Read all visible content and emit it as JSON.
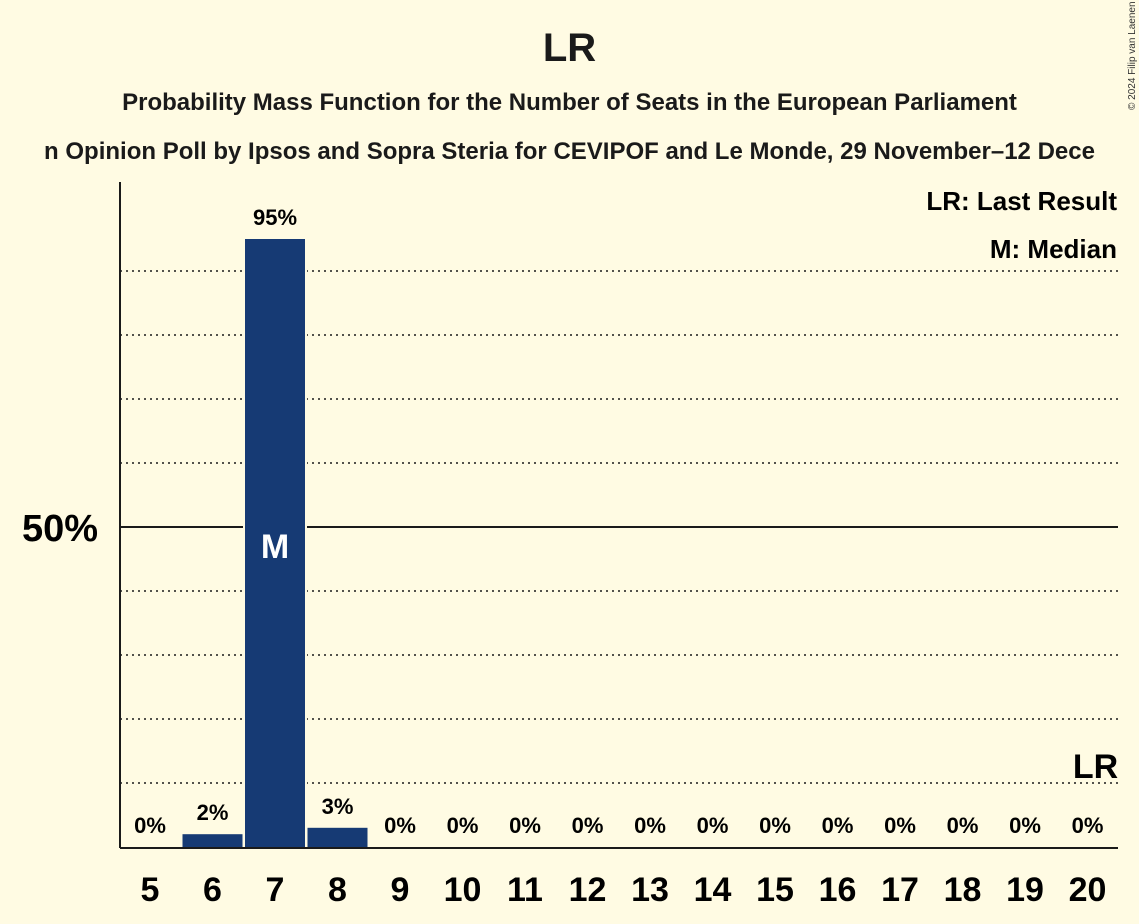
{
  "title": "LR",
  "subtitle": "Probability Mass Function for the Number of Seats in the European Parliament",
  "subtitle2": "n Opinion Poll by Ipsos and Sopra Steria for CEVIPOF and Le Monde, 29 November–12 Dece",
  "copyright": "© 2024 Filip van Laenen",
  "legend": {
    "last_result": "LR: Last Result",
    "median": "M: Median"
  },
  "colors": {
    "bar": "#163a74",
    "background": "#fffbe3",
    "text": "#1a1a1a"
  },
  "chart_data": {
    "type": "bar",
    "categories": [
      "5",
      "6",
      "7",
      "8",
      "9",
      "10",
      "11",
      "12",
      "13",
      "14",
      "15",
      "16",
      "17",
      "18",
      "19",
      "20"
    ],
    "values": [
      0,
      2,
      95,
      3,
      0,
      0,
      0,
      0,
      0,
      0,
      0,
      0,
      0,
      0,
      0,
      0
    ],
    "value_labels": [
      "0%",
      "2%",
      "95%",
      "3%",
      "0%",
      "0%",
      "0%",
      "0%",
      "0%",
      "0%",
      "0%",
      "0%",
      "0%",
      "0%",
      "0%",
      "0%"
    ],
    "ylim": [
      0,
      100
    ],
    "y_tick_label": "50%",
    "y_tick_value": 50,
    "gridlines_dotted": [
      10,
      20,
      30,
      40,
      60,
      70,
      80,
      90
    ],
    "median_category": "7",
    "median_marker": "M",
    "last_result_category": "20",
    "last_result_marker": "LR",
    "legend_position": "top-right"
  }
}
